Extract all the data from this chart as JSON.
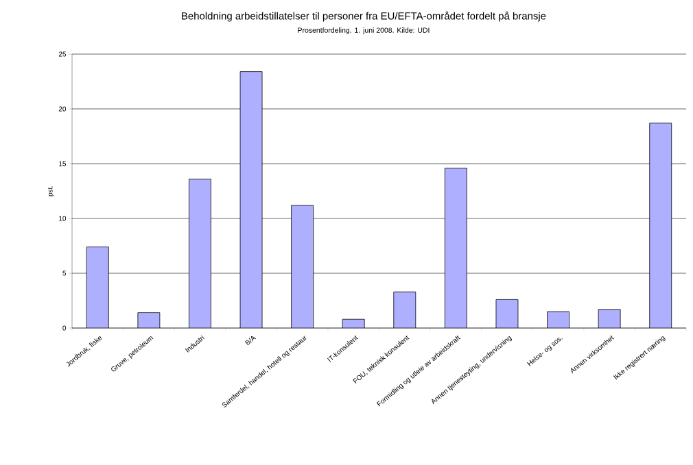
{
  "chart_data": {
    "type": "bar",
    "title": "Beholdning arbeidstillatelser til personer fra EU/EFTA-området fordelt på bransje",
    "subtitle": "Prosentfordeling. 1. juni 2008. Kilde: UDI",
    "ylabel": "pst.",
    "categories": [
      "Jordbruk, fiske",
      "Gruve, petroleum",
      "Industri",
      "B/A",
      "Samferdel, handel, hotell og restaur",
      "IT-konsulent",
      "FOU, teknisk konsulent",
      "Formidling og utleie av arbeidskraft",
      "Annen tjenesteyting, undervisning",
      "Helse- og sos.",
      "Annen virksomhet",
      "Ikke registrert næring"
    ],
    "values": [
      7.4,
      1.4,
      13.6,
      23.4,
      11.2,
      0.8,
      3.3,
      14.6,
      2.6,
      1.5,
      1.7,
      18.7
    ],
    "color": "#afafff",
    "ylim": [
      0,
      25
    ],
    "yticks": [
      0,
      5,
      10,
      15,
      20,
      25
    ],
    "grid": "y"
  }
}
